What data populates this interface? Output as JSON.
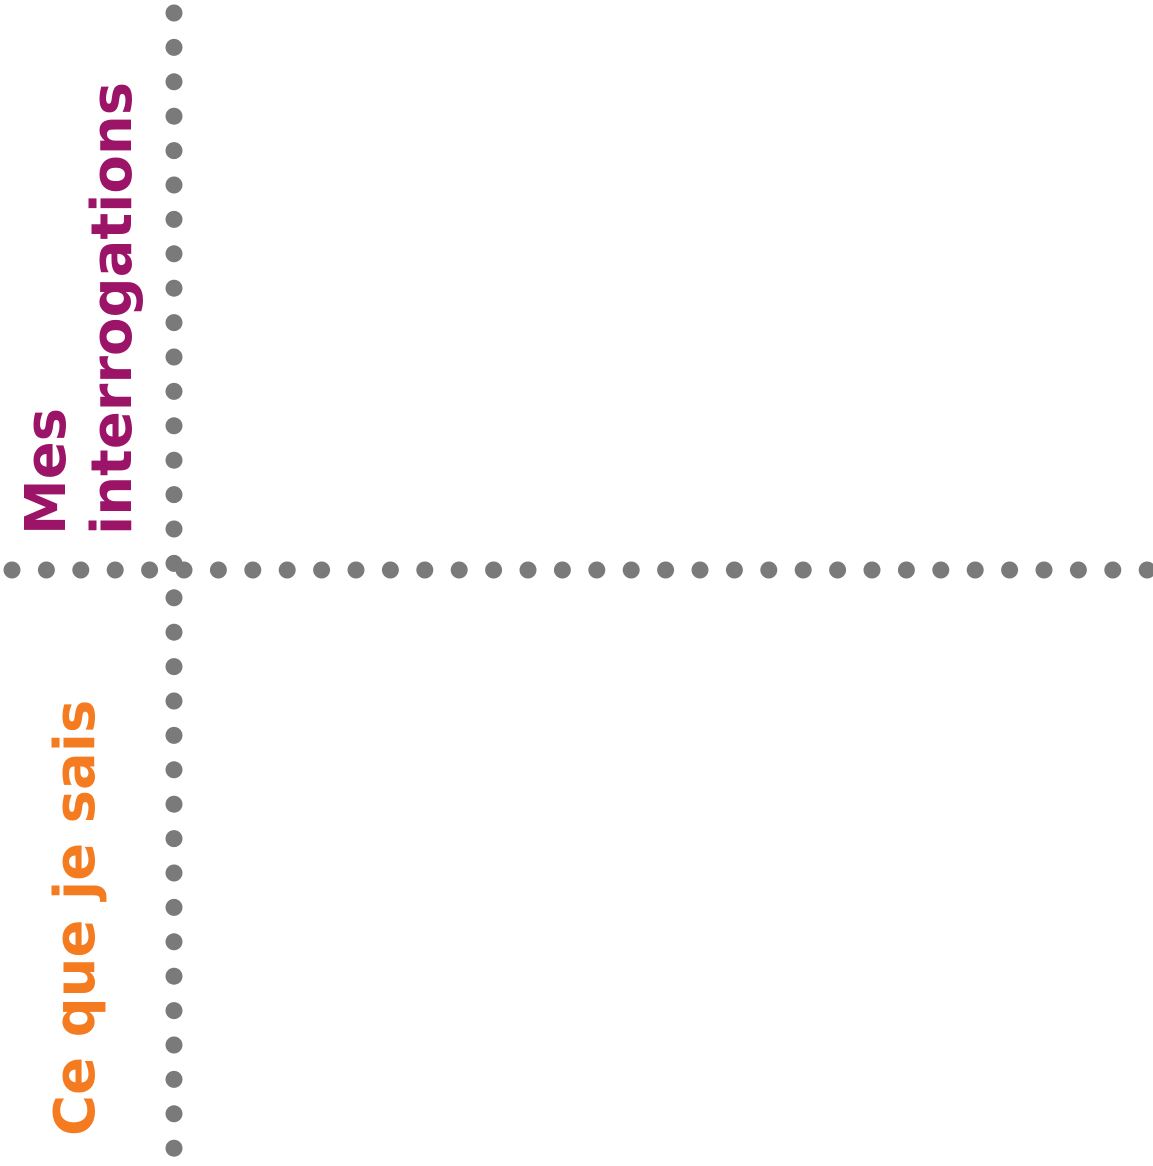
{
  "labels": {
    "top_line1": "Mes",
    "top_line2": "interrogations",
    "bottom": "Ce que je sais"
  },
  "colors": {
    "top_label": "#9b1468",
    "bottom_label": "#f47b20",
    "dots": "#7a7a7a"
  }
}
